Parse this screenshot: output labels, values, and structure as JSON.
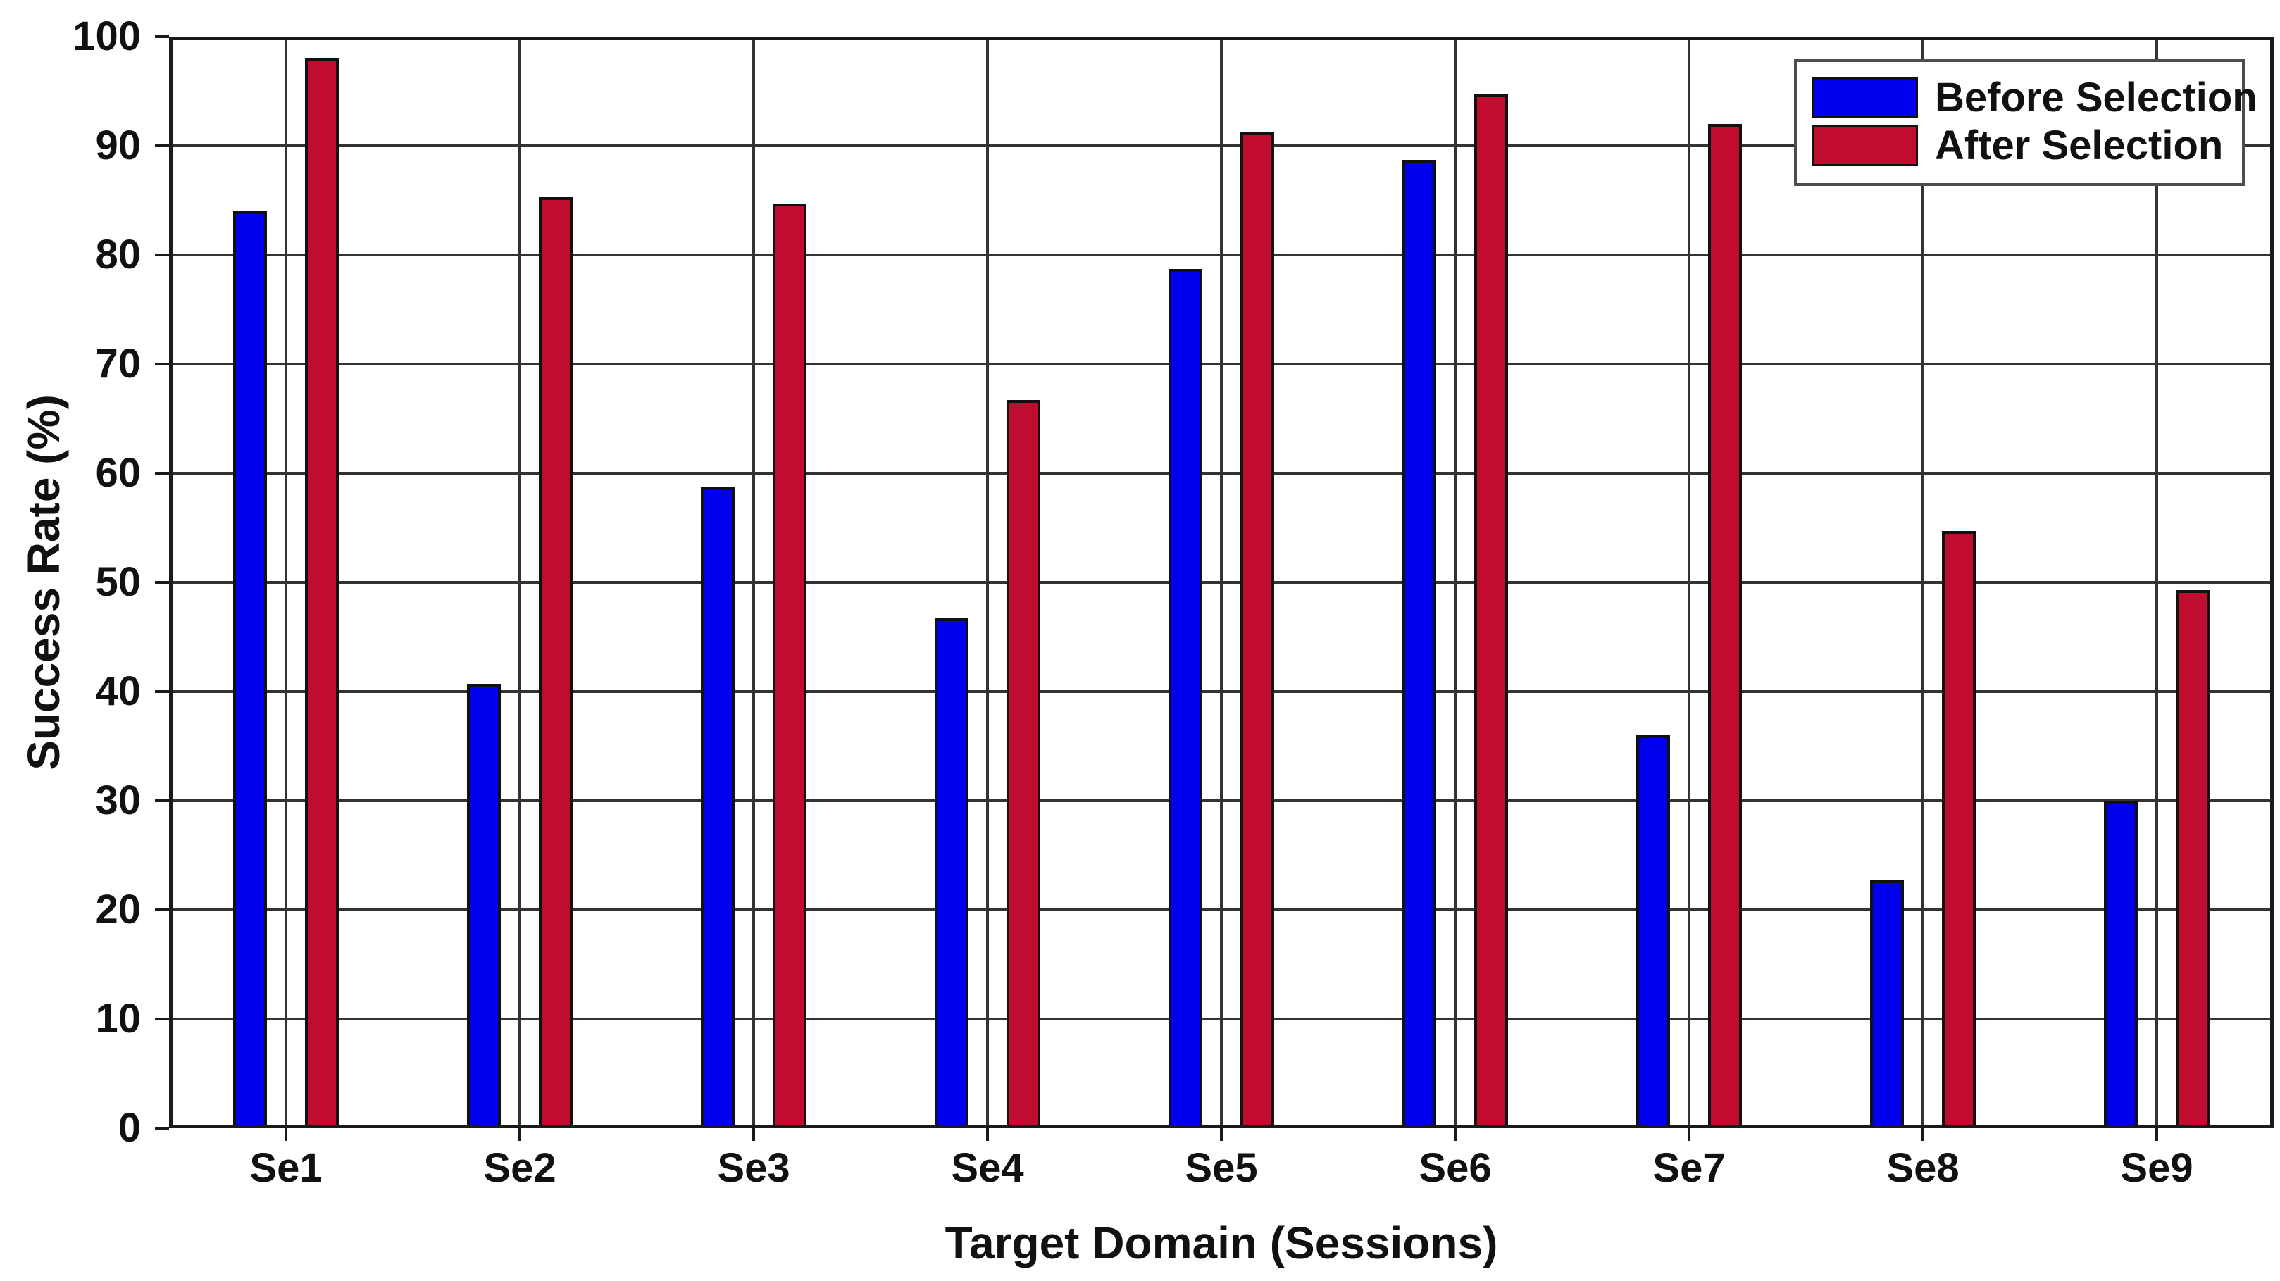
{
  "chart_data": {
    "type": "bar",
    "title": "",
    "categories": [
      "Se1",
      "Se2",
      "Se3",
      "Se4",
      "Se5",
      "Se6",
      "Se7",
      "Se8",
      "Se9"
    ],
    "series": [
      {
        "name": "Before Selection",
        "color": "#0000EE",
        "values": [
          84,
          40.7,
          58.7,
          46.7,
          78.7,
          88.7,
          36,
          22.7,
          30
        ]
      },
      {
        "name": "After Selection",
        "color": "#C00C2E",
        "values": [
          98,
          85.3,
          84.7,
          66.7,
          91.3,
          94.7,
          92,
          54.7,
          49.3
        ]
      }
    ],
    "xlabel": "Target Domain (Sessions)",
    "ylabel": "Success Rate (%)",
    "ylim": [
      0,
      100
    ],
    "yticks": [
      0,
      10,
      20,
      30,
      40,
      50,
      60,
      70,
      80,
      90,
      100
    ],
    "grid": true,
    "legend_position": "top-right"
  }
}
